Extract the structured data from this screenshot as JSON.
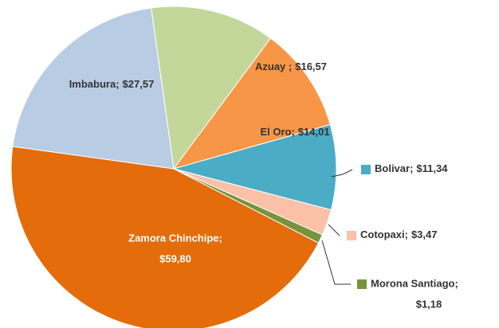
{
  "chart_data": {
    "type": "pie",
    "categories": [
      "Azuay ;",
      "El Oro;",
      "Bolivar;",
      "Cotopaxi;",
      "Morona Santiago;",
      "Zamora Chinchipe;",
      "Imbabura;"
    ],
    "values": [
      16.57,
      14.01,
      11.34,
      3.47,
      1.18,
      59.8,
      27.57
    ],
    "value_labels": [
      "$16,57",
      "$14,01",
      "$11,34",
      "$3,47",
      "$1,18",
      "$59,80",
      "$27,57"
    ],
    "colors": [
      "#c4d79b",
      "#f79646",
      "#4bacc6",
      "#fac0a8",
      "#77933c",
      "#e46c0a",
      "#b8cce4"
    ]
  }
}
